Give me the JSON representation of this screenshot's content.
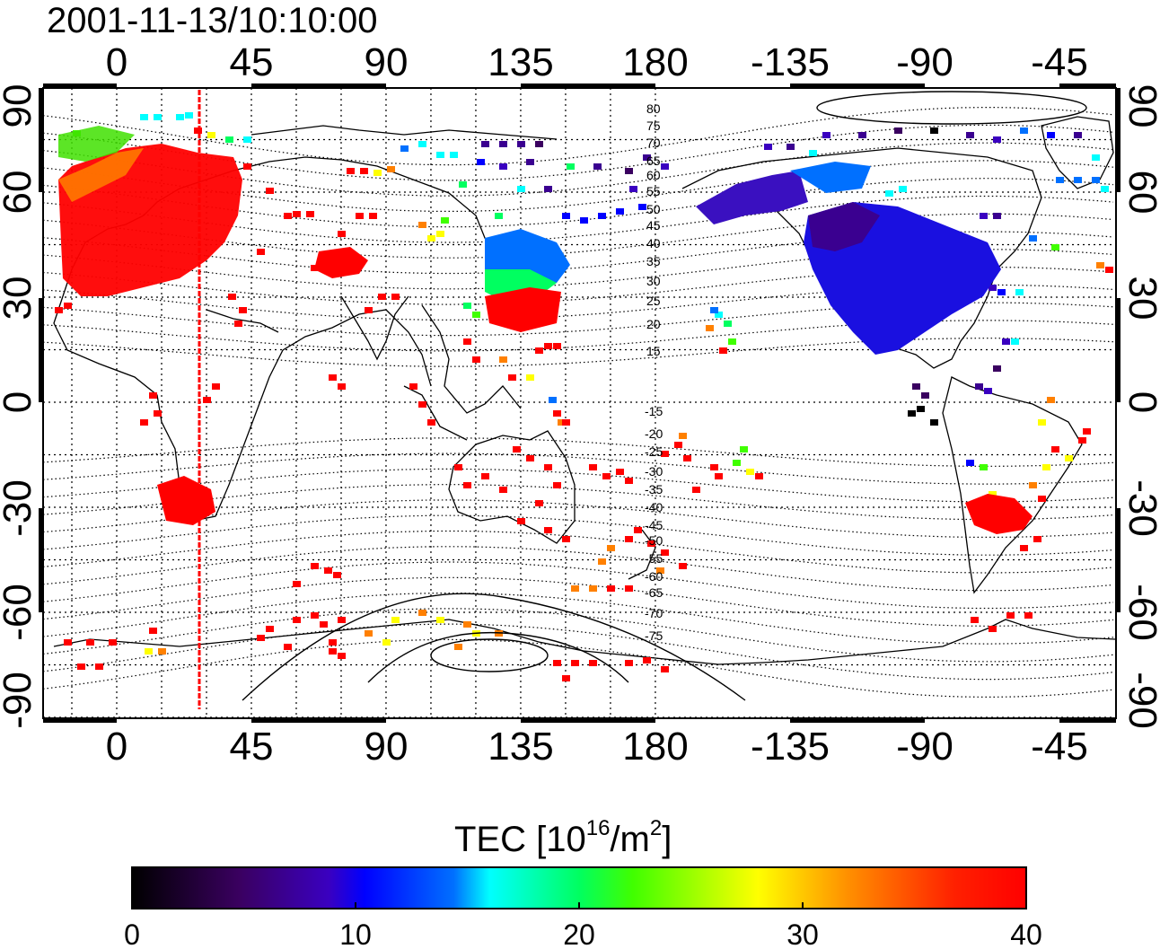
{
  "title": "2001-11-13/10:10:00",
  "top_axis_ticks": [
    "0",
    "45",
    "90",
    "135",
    "180",
    "-135",
    "-90",
    "-45"
  ],
  "bottom_axis_ticks": [
    "0",
    "45",
    "90",
    "135",
    "180",
    "-135",
    "-90",
    "-45"
  ],
  "left_axis_ticks": [
    "90",
    "60",
    "30",
    "0",
    "-30",
    "-60",
    "-90"
  ],
  "right_axis_ticks": [
    "90",
    "60",
    "30",
    "0",
    "-30",
    "-60",
    "-90"
  ],
  "contour_labels_north": [
    "80",
    "75",
    "70",
    "65",
    "60",
    "55",
    "50",
    "45",
    "40",
    "35",
    "30",
    "25",
    "20",
    "15"
  ],
  "contour_labels_south": [
    "-15",
    "-20",
    "-25",
    "-30",
    "-35",
    "-40",
    "-45",
    "-50",
    "-55",
    "-60",
    "-65",
    "-70",
    "-75"
  ],
  "colorbar": {
    "label_main": "TEC  [10",
    "label_exp1": "16",
    "label_mid": "/m",
    "label_exp2": "2",
    "label_end": "]",
    "ticks": [
      "0",
      "10",
      "20",
      "30",
      "40"
    ],
    "range": [
      0,
      40
    ]
  },
  "colors": {
    "marker_line": "#ff0000",
    "colormap": [
      "#000000",
      "#4a0070",
      "#0000ff",
      "#00ffff",
      "#00ff00",
      "#ffff00",
      "#ff8000",
      "#ff0000"
    ]
  },
  "terminator_longitude": 28
}
